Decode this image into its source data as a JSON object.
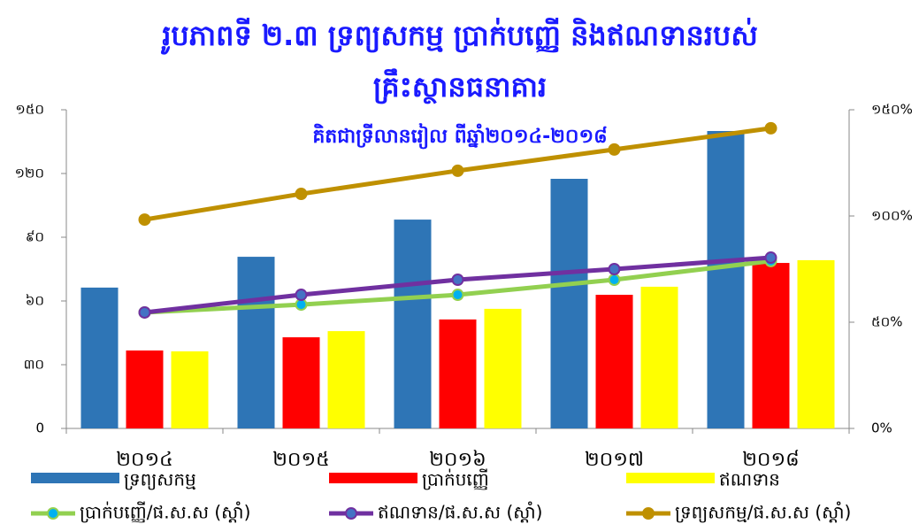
{
  "chart_data": {
    "type": "bar",
    "title": "រូបភាពទី ២.៣ ទ្រព្យសកម្ម ប្រាក់បញ្ញើ និងឥណទានរបស់",
    "title_line2": "គ្រឹះស្ថានធនាគារ",
    "subtitle": "គិតជាទ្រីលានរៀល ពីឆ្នាំ២០១៤-២០១៨",
    "categories": [
      "២០១៤",
      "២០១៥",
      "២០១៦",
      "២០១៧",
      "២០១៨"
    ],
    "series": [
      {
        "name": "ទ្រព្យសកម្ម",
        "type": "bar",
        "color": "#2e75b6",
        "values": [
          66.3,
          80.8,
          98.3,
          117.5,
          140
        ]
      },
      {
        "name": "ប្រាក់បញ្ញើ",
        "type": "bar",
        "color": "#ff0000",
        "values": [
          36.7,
          42.9,
          51.3,
          62.9,
          77.9
        ]
      },
      {
        "name": "ឥណទាន",
        "type": "bar",
        "color": "#ffff00",
        "values": [
          36.3,
          45.8,
          56.3,
          66.7,
          79.2
        ]
      },
      {
        "name": "ប្រាក់បញ្ញើ/ផ.ស.ស (ស្តាំ)",
        "type": "line",
        "axis": "y2",
        "color": "#92d050",
        "marker_color": "#00b0f0",
        "values": [
          54.6,
          58.3,
          62.9,
          70,
          78.8
        ]
      },
      {
        "name": "ឥណទាន/ផ.ស.ស (ស្តាំ)",
        "type": "line",
        "axis": "y2",
        "color": "#7030a0",
        "marker_color": "#4472c4",
        "values": [
          54.6,
          62.9,
          70,
          75,
          80.4
        ]
      },
      {
        "name": "ទ្រព្យសកម្ម/ផ.ស.ស (ស្តាំ)",
        "type": "line",
        "axis": "y2",
        "color": "#bf9000",
        "marker_color": "#bf9000",
        "values": [
          98.3,
          110.4,
          121.3,
          131.3,
          141.3
        ]
      }
    ],
    "ylim": [
      0,
      150
    ],
    "yticks": [
      0,
      {
        "value": 30,
        "label": "៣០"
      },
      {
        "value": 60,
        "label": "៦០"
      },
      {
        "value": 90,
        "label": "៩០"
      },
      {
        "value": 120,
        "label": "១២០"
      },
      {
        "value": 150,
        "label": "១៥០"
      }
    ],
    "y2lim": [
      0,
      150
    ],
    "y2ticks": [
      {
        "value": 0,
        "label": "0%"
      },
      {
        "value": 50,
        "label": "៥០%"
      },
      {
        "value": 100,
        "label": "១០០%"
      },
      {
        "value": 150,
        "label": "១៥០%"
      }
    ]
  }
}
